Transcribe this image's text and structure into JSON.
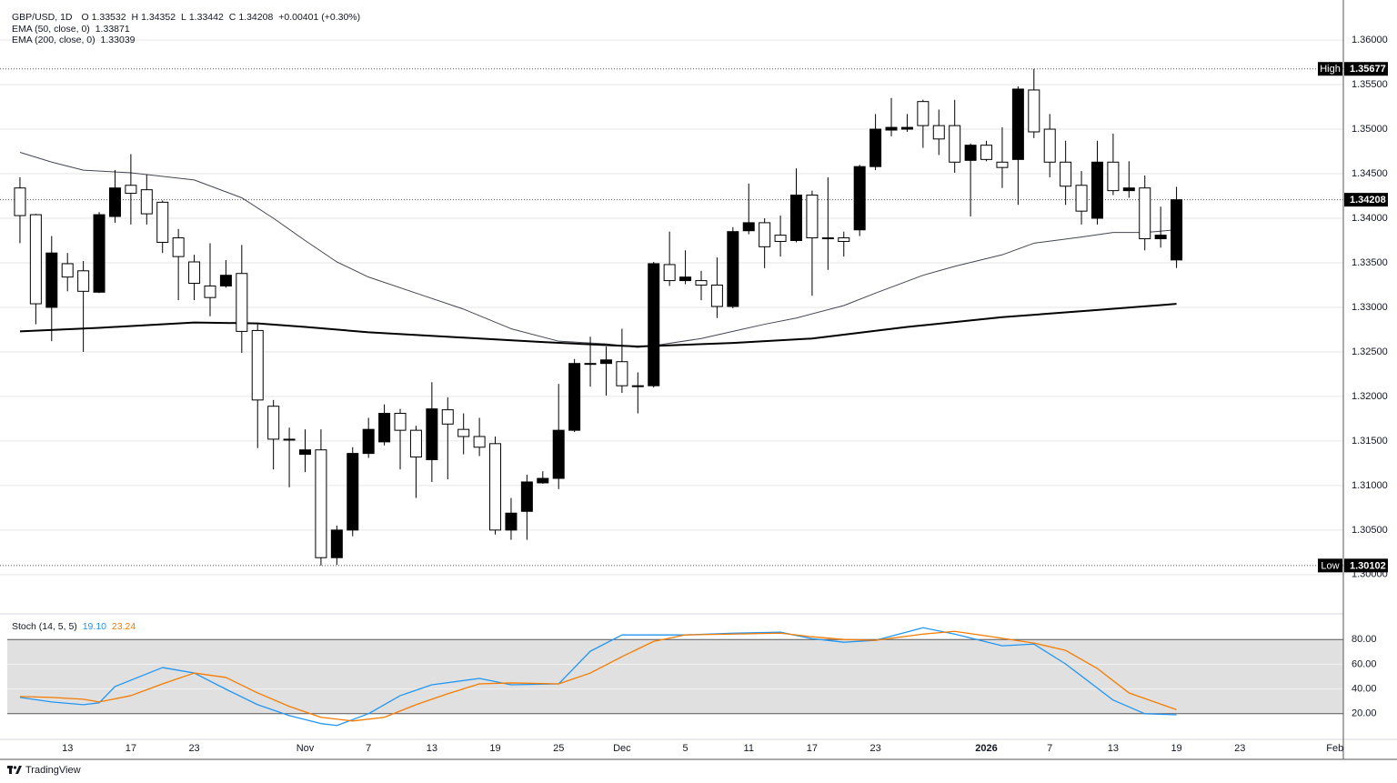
{
  "header": {
    "symbol": "GBP/USD, 1D",
    "ohlc_letters": [
      "O",
      "H",
      "L",
      "C"
    ],
    "change": "+0.00401 (+0.30%)"
  },
  "chart_data": [
    {
      "type": "candlestick",
      "up_color": "#000000",
      "down_color": "#ffffff",
      "xlim": [
        -1.26,
        83.53
      ],
      "ylim": [
        1.2959,
        1.3645
      ],
      "yticks": [
        {
          "value": 1.3,
          "label": "1.30000"
        },
        {
          "value": 1.305,
          "label": "1.30500"
        },
        {
          "value": 1.31,
          "label": "1.31000"
        },
        {
          "value": 1.315,
          "label": "1.31500"
        },
        {
          "value": 1.32,
          "label": "1.32000"
        },
        {
          "value": 1.325,
          "label": "1.32500"
        },
        {
          "value": 1.33,
          "label": "1.33000"
        },
        {
          "value": 1.335,
          "label": "1.33500"
        },
        {
          "value": 1.34,
          "label": "1.34000"
        },
        {
          "value": 1.345,
          "label": "1.34500"
        },
        {
          "value": 1.35,
          "label": "1.35000"
        },
        {
          "value": 1.355,
          "label": "1.35500"
        },
        {
          "value": 1.36,
          "label": "1.36000"
        }
      ],
      "grid": true,
      "open": [
        1.3434,
        1.3404,
        1.33,
        1.3349,
        1.3341,
        1.3317,
        1.3402,
        1.3437,
        1.3432,
        1.3418,
        1.3378,
        1.3351,
        1.3324,
        1.3324,
        1.3338,
        1.3274,
        1.3189,
        1.3152,
        1.3135,
        1.314,
        1.3019,
        1.305,
        1.3136,
        1.3149,
        1.3181,
        1.3162,
        1.3129,
        1.3185,
        1.3163,
        1.3155,
        1.3147,
        1.305,
        1.3071,
        1.3103,
        1.3108,
        1.3162,
        1.3237,
        1.3237,
        1.3239,
        1.3212,
        1.3212,
        1.3348,
        1.333,
        1.333,
        1.3325,
        1.3301,
        1.3386,
        1.3395,
        1.3381,
        1.3375,
        1.3426,
        1.3378,
        1.3378,
        1.3387,
        1.3458,
        1.3499,
        1.35,
        1.3531,
        1.3504,
        1.3504,
        1.3465,
        1.3482,
        1.3463,
        1.3466,
        1.3544,
        1.35,
        1.3463,
        1.3437,
        1.34,
        1.3463,
        1.3431,
        1.3434,
        1.3377,
        1.33532
      ],
      "high": [
        1.3446,
        1.3405,
        1.338,
        1.3361,
        1.3352,
        1.3407,
        1.3454,
        1.3472,
        1.3449,
        1.342,
        1.3388,
        1.3359,
        1.3372,
        1.3353,
        1.337,
        1.3281,
        1.3196,
        1.3165,
        1.3163,
        1.3163,
        1.3055,
        1.3143,
        1.3176,
        1.3191,
        1.3186,
        1.3167,
        1.3216,
        1.3199,
        1.3181,
        1.3176,
        1.3155,
        1.3086,
        1.3112,
        1.3116,
        1.3214,
        1.3242,
        1.3267,
        1.3256,
        1.3276,
        1.3227,
        1.3351,
        1.3385,
        1.3364,
        1.3341,
        1.3356,
        1.339,
        1.3439,
        1.34,
        1.3403,
        1.3456,
        1.3431,
        1.3446,
        1.3385,
        1.346,
        1.3517,
        1.3535,
        1.3517,
        1.3533,
        1.3522,
        1.3533,
        1.3484,
        1.3487,
        1.3502,
        1.3548,
        1.35677,
        1.3517,
        1.3487,
        1.3453,
        1.3487,
        1.3495,
        1.3464,
        1.3448,
        1.3413,
        1.34352
      ],
      "low": [
        1.3372,
        1.3281,
        1.3262,
        1.3318,
        1.325,
        1.3316,
        1.3395,
        1.3393,
        1.3393,
        1.3361,
        1.3308,
        1.3308,
        1.329,
        1.3322,
        1.3249,
        1.3142,
        1.3118,
        1.3098,
        1.3115,
        1.30102,
        1.3011,
        1.3043,
        1.3131,
        1.3145,
        1.3118,
        1.3086,
        1.3104,
        1.3107,
        1.3135,
        1.3133,
        1.3045,
        1.3039,
        1.3039,
        1.3102,
        1.3096,
        1.316,
        1.3211,
        1.3201,
        1.3204,
        1.3181,
        1.321,
        1.3324,
        1.3326,
        1.3308,
        1.3288,
        1.3299,
        1.3382,
        1.3344,
        1.3357,
        1.3373,
        1.3313,
        1.3342,
        1.3357,
        1.338,
        1.3454,
        1.3492,
        1.3497,
        1.3479,
        1.3471,
        1.3451,
        1.3402,
        1.3464,
        1.3434,
        1.3415,
        1.349,
        1.3446,
        1.3415,
        1.3393,
        1.3393,
        1.3426,
        1.3423,
        1.3364,
        1.3367,
        1.33442
      ],
      "close": [
        1.3403,
        1.3304,
        1.3361,
        1.3334,
        1.3318,
        1.3404,
        1.3434,
        1.3428,
        1.3405,
        1.3373,
        1.3357,
        1.3327,
        1.3311,
        1.3336,
        1.3273,
        1.3196,
        1.3152,
        1.3151,
        1.314,
        1.3019,
        1.305,
        1.3136,
        1.3163,
        1.3181,
        1.3162,
        1.3132,
        1.3186,
        1.3169,
        1.3155,
        1.3143,
        1.305,
        1.3069,
        1.3104,
        1.3108,
        1.3162,
        1.3237,
        1.3237,
        1.3241,
        1.3212,
        1.3212,
        1.3349,
        1.333,
        1.3334,
        1.3325,
        1.3301,
        1.3385,
        1.3395,
        1.3368,
        1.3374,
        1.3426,
        1.3378,
        1.3378,
        1.3374,
        1.3458,
        1.35,
        1.3502,
        1.3502,
        1.3504,
        1.3489,
        1.3463,
        1.3482,
        1.3466,
        1.3457,
        1.3545,
        1.3497,
        1.3463,
        1.3436,
        1.3408,
        1.3463,
        1.3431,
        1.3434,
        1.3377,
        1.3381,
        1.34208
      ],
      "series": [
        {
          "name": "EMA (50, close, 0)",
          "color": "#434651",
          "width": 1,
          "x": [
            0,
            2,
            4,
            7,
            11,
            14,
            16,
            18,
            20,
            22,
            25,
            28,
            31,
            34,
            37,
            39,
            40,
            43,
            45,
            47,
            49,
            52,
            54,
            57,
            59,
            62,
            64,
            67,
            69,
            71,
            73
          ],
          "values": [
            1.3474,
            1.3463,
            1.3454,
            1.3451,
            1.3443,
            1.3423,
            1.34,
            1.3375,
            1.3351,
            1.3334,
            1.3316,
            1.3298,
            1.3276,
            1.3262,
            1.3259,
            1.3255,
            1.3257,
            1.3265,
            1.3273,
            1.3281,
            1.3288,
            1.3302,
            1.3316,
            1.3336,
            1.3346,
            1.3359,
            1.3372,
            1.3379,
            1.3384,
            1.3384,
            1.33871
          ]
        },
        {
          "name": "EMA (200, close, 0)",
          "color": "#000000",
          "width": 2,
          "x": [
            0,
            5,
            11,
            15,
            18,
            22,
            28,
            33,
            39,
            45,
            50,
            56,
            62,
            68,
            73
          ],
          "values": [
            1.3273,
            1.3277,
            1.3283,
            1.3282,
            1.3278,
            1.3272,
            1.3266,
            1.3261,
            1.3256,
            1.326,
            1.3265,
            1.3278,
            1.3289,
            1.3297,
            1.33039
          ]
        }
      ],
      "markers": [
        {
          "label": "High",
          "value": 1.35677
        },
        {
          "label": "Low",
          "value": 1.30102
        }
      ]
    },
    {
      "type": "line",
      "title": "Stoch (14, 5, 5)",
      "xlim": [
        -1.26,
        83.53
      ],
      "ylim": [
        0,
        100
      ],
      "band": [
        20,
        80
      ],
      "yticks": [
        {
          "value": 20,
          "label": "20.00"
        },
        {
          "value": 40,
          "label": "40.00"
        },
        {
          "value": 60,
          "label": "60.00"
        },
        {
          "value": 80,
          "label": "80.00"
        }
      ],
      "xticks": [
        {
          "value": 3,
          "label": "13"
        },
        {
          "value": 7,
          "label": "17"
        },
        {
          "value": 11,
          "label": "23"
        },
        {
          "value": 18,
          "label": "Nov"
        },
        {
          "value": 22,
          "label": "7"
        },
        {
          "value": 26,
          "label": "13"
        },
        {
          "value": 30,
          "label": "19"
        },
        {
          "value": 34,
          "label": "25"
        },
        {
          "value": 38,
          "label": "Dec"
        },
        {
          "value": 42,
          "label": "5"
        },
        {
          "value": 46,
          "label": "11"
        },
        {
          "value": 50,
          "label": "17"
        },
        {
          "value": 54,
          "label": "23"
        },
        {
          "value": 61,
          "label": "2026"
        },
        {
          "value": 65,
          "label": "7"
        },
        {
          "value": 69,
          "label": "13"
        },
        {
          "value": 73,
          "label": "19"
        },
        {
          "value": 77,
          "label": "23"
        },
        {
          "value": 83,
          "label": "Feb"
        }
      ],
      "series": [
        {
          "color": "#2196f3",
          "x": [
            0,
            2,
            4,
            5,
            6,
            9,
            11,
            13,
            15,
            17,
            19,
            20,
            22,
            24,
            26,
            29,
            31,
            34,
            36,
            38,
            40,
            42,
            45,
            48,
            50,
            52,
            54,
            57,
            59,
            62,
            64,
            66,
            69,
            71,
            73
          ],
          "values": [
            33.2,
            29.5,
            27.3,
            28.8,
            42.0,
            57.3,
            52.9,
            39.8,
            27.3,
            18.5,
            12.0,
            10.5,
            20.0,
            34.6,
            43.4,
            48.5,
            43.4,
            44.1,
            70.5,
            83.7,
            83.7,
            83.7,
            85.1,
            85.9,
            80.7,
            77.8,
            79.3,
            89.5,
            84.4,
            74.9,
            76.3,
            60.2,
            31.0,
            20.0,
            19.1
          ],
          "value_labels": [
            null,
            null,
            null,
            null,
            null,
            null,
            null,
            null,
            null,
            null,
            null,
            null,
            null,
            null,
            null,
            null,
            null,
            null,
            null,
            null,
            null,
            null,
            null,
            null,
            null,
            null,
            null,
            null,
            null,
            null,
            null,
            null,
            null,
            null,
            "19.10"
          ]
        },
        {
          "color": "#f57c00",
          "x": [
            0,
            2,
            4,
            5,
            7,
            9,
            11,
            13,
            15,
            17,
            19,
            21,
            23,
            25,
            27,
            29,
            31,
            34,
            36,
            38,
            40,
            42,
            45,
            48,
            50,
            52,
            54,
            57,
            59,
            61,
            64,
            66,
            68,
            70,
            73
          ],
          "values": [
            33.9,
            33.2,
            31.7,
            29.5,
            34.6,
            44.1,
            52.9,
            49.3,
            36.8,
            25.9,
            17.1,
            14.1,
            17.1,
            27.3,
            36.1,
            44.1,
            44.9,
            44.1,
            52.9,
            66.1,
            78.5,
            83.7,
            84.4,
            85.1,
            82.2,
            80.0,
            79.3,
            84.4,
            86.6,
            82.9,
            77.1,
            71.2,
            56.6,
            36.8,
            23.24
          ],
          "value_labels": [
            null,
            null,
            null,
            null,
            null,
            null,
            null,
            null,
            null,
            null,
            null,
            null,
            null,
            null,
            null,
            null,
            null,
            null,
            null,
            null,
            null,
            null,
            null,
            null,
            null,
            null,
            null,
            null,
            null,
            null,
            null,
            null,
            null,
            null,
            "23.24"
          ]
        }
      ]
    }
  ],
  "footer": {
    "brand": "TradingView"
  }
}
